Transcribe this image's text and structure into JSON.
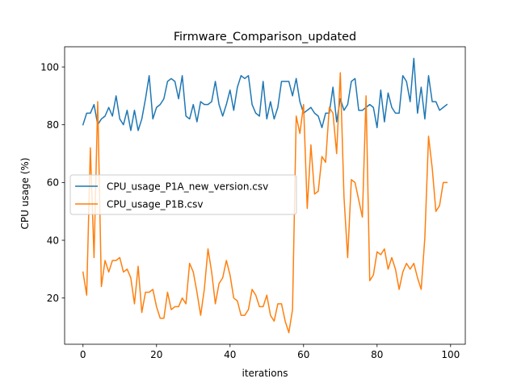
{
  "chart_data": {
    "type": "line",
    "title": "Firmware_Comparison_updated",
    "xlabel": "iterations",
    "ylabel": "CPU usage (%)",
    "xlim": [
      -5,
      104
    ],
    "ylim": [
      4,
      107
    ],
    "xticks": [
      0,
      20,
      40,
      60,
      80,
      100
    ],
    "yticks": [
      20,
      40,
      60,
      80,
      100
    ],
    "grid": false,
    "legend_position": "center-left",
    "series": [
      {
        "name": "CPU_usage_P1A_new_version.csv",
        "color": "#1f77b4",
        "x": [
          0,
          1,
          2,
          3,
          4,
          5,
          6,
          7,
          8,
          9,
          10,
          11,
          12,
          13,
          14,
          15,
          16,
          17,
          18,
          19,
          20,
          21,
          22,
          23,
          24,
          25,
          26,
          27,
          28,
          29,
          30,
          31,
          32,
          33,
          34,
          35,
          36,
          37,
          38,
          39,
          40,
          41,
          42,
          43,
          44,
          45,
          46,
          47,
          48,
          49,
          50,
          51,
          52,
          53,
          54,
          55,
          56,
          57,
          58,
          59,
          60,
          61,
          62,
          63,
          64,
          65,
          66,
          67,
          68,
          69,
          70,
          71,
          72,
          73,
          74,
          75,
          76,
          77,
          78,
          79,
          80,
          81,
          82,
          83,
          84,
          85,
          86,
          87,
          88,
          89,
          90,
          91,
          92,
          93,
          94,
          95,
          96,
          97,
          98,
          99
        ],
        "y": [
          80,
          84,
          84,
          87,
          80,
          82,
          83,
          86,
          83,
          90,
          82,
          80,
          85,
          78,
          85,
          78,
          82,
          89,
          97,
          82,
          86,
          87,
          89,
          95,
          96,
          95,
          89,
          97,
          83,
          82,
          87,
          81,
          88,
          87,
          87,
          88,
          95,
          87,
          83,
          87,
          92,
          85,
          93,
          97,
          96,
          97,
          87,
          84,
          83,
          95,
          82,
          88,
          82,
          86,
          95,
          95,
          95,
          90,
          96,
          88,
          84,
          85,
          86,
          84,
          83,
          79,
          84,
          84,
          93,
          81,
          89,
          85,
          87,
          95,
          96,
          85,
          85,
          86,
          87,
          86,
          79,
          92,
          81,
          91,
          86,
          84,
          84,
          97,
          95,
          88,
          103,
          84,
          93,
          82,
          97,
          88,
          88,
          85,
          86,
          87
        ]
      },
      {
        "name": "CPU_usage_P1B.csv",
        "color": "#ff7f0e",
        "x": [
          0,
          1,
          2,
          3,
          4,
          5,
          6,
          7,
          8,
          9,
          10,
          11,
          12,
          13,
          14,
          15,
          16,
          17,
          18,
          19,
          20,
          21,
          22,
          23,
          24,
          25,
          26,
          27,
          28,
          29,
          30,
          31,
          32,
          33,
          34,
          35,
          36,
          37,
          38,
          39,
          40,
          41,
          42,
          43,
          44,
          45,
          46,
          47,
          48,
          49,
          50,
          51,
          52,
          53,
          54,
          55,
          56,
          57,
          58,
          59,
          60,
          61,
          62,
          63,
          64,
          65,
          66,
          67,
          68,
          69,
          70,
          71,
          72,
          73,
          74,
          75,
          76,
          77,
          78,
          79,
          80,
          81,
          82,
          83,
          84,
          85,
          86,
          87,
          88,
          89,
          90,
          91,
          92,
          93,
          94,
          95,
          96,
          97,
          98,
          99
        ],
        "y": [
          29,
          21,
          72,
          34,
          88,
          24,
          33,
          29,
          33,
          33,
          34,
          29,
          30,
          27,
          18,
          31,
          15,
          22,
          22,
          23,
          17,
          13,
          13,
          22,
          16,
          17,
          17,
          20,
          18,
          32,
          29,
          22,
          14,
          23,
          37,
          29,
          18,
          25,
          27,
          33,
          28,
          20,
          19,
          14,
          14,
          16,
          23,
          21,
          17,
          17,
          21,
          14,
          12,
          18,
          18,
          12,
          8,
          16,
          83,
          77,
          87,
          51,
          73,
          56,
          57,
          69,
          67,
          86,
          84,
          70,
          98,
          55,
          34,
          61,
          60,
          54,
          48,
          90,
          26,
          28,
          36,
          35,
          37,
          30,
          34,
          30,
          23,
          29,
          32,
          30,
          32,
          27,
          23,
          41,
          76,
          65,
          50,
          52,
          60,
          60
        ]
      }
    ]
  }
}
